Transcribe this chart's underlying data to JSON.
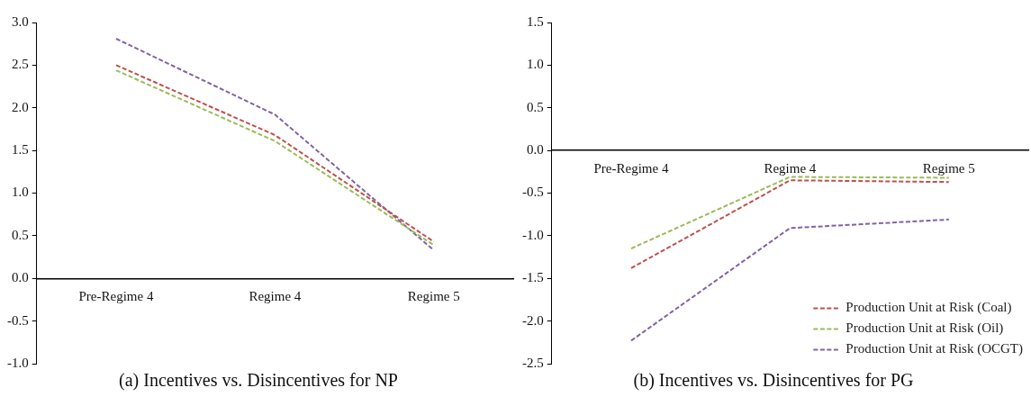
{
  "chart_data": [
    {
      "type": "line",
      "title": "(a) Incentives vs. Disincentives for NP",
      "categories": [
        "Pre-Regime 4",
        "Regime 4",
        "Regime 5"
      ],
      "ylim": [
        -1.0,
        3.0
      ],
      "yticks": [
        {
          "value": -1,
          "label": "-1.0"
        },
        {
          "value": -0.5,
          "label": "-0.5"
        },
        {
          "value": 0,
          "label": "0.0"
        },
        {
          "value": 0.5,
          "label": "0.5"
        },
        {
          "value": 1,
          "label": "1.0"
        },
        {
          "value": 1.5,
          "label": "1.5"
        },
        {
          "value": 2,
          "label": "2.0"
        },
        {
          "value": 2.5,
          "label": "2.5"
        },
        {
          "value": 3,
          "label": "3.0"
        }
      ],
      "line_style": "dashed",
      "marker": "none",
      "grid": false,
      "legend": false,
      "series": [
        {
          "color": "#c0504d",
          "values": [
            2.5,
            1.68,
            0.43
          ]
        },
        {
          "color": "#9bbb59",
          "values": [
            2.44,
            1.61,
            0.39
          ]
        },
        {
          "color": "#8064a2",
          "values": [
            2.81,
            1.92,
            0.33
          ]
        }
      ]
    },
    {
      "type": "line",
      "title": "(b) Incentives vs. Disincentives for PG",
      "categories": [
        "Pre-Regime 4",
        "Regime 4",
        "Regime 5"
      ],
      "ylim": [
        -2.5,
        1.5
      ],
      "yticks": [
        {
          "value": -2.5,
          "label": "-2.5"
        },
        {
          "value": -2,
          "label": "-2.0"
        },
        {
          "value": -1.5,
          "label": "-1.5"
        },
        {
          "value": -1,
          "label": "-1.0"
        },
        {
          "value": -0.5,
          "label": "-0.5"
        },
        {
          "value": 0,
          "label": "0.0"
        },
        {
          "value": 0.5,
          "label": "0.5"
        },
        {
          "value": 1,
          "label": "1.0"
        },
        {
          "value": 1.5,
          "label": "1.5"
        }
      ],
      "line_style": "dashed",
      "marker": "none",
      "grid": false,
      "legend": "bottom right",
      "series": [
        {
          "name": "Production Unit at Risk (Coal)",
          "color": "#c0504d",
          "values": [
            -1.38,
            -0.35,
            -0.37
          ]
        },
        {
          "name": "Production Unit at Risk (Oil)",
          "color": "#9bbb59",
          "values": [
            -1.15,
            -0.31,
            -0.32
          ]
        },
        {
          "name": "Production Unit at Risk (OCGT)",
          "color": "#8064a2",
          "values": [
            -2.23,
            -0.91,
            -0.81
          ]
        }
      ]
    }
  ]
}
